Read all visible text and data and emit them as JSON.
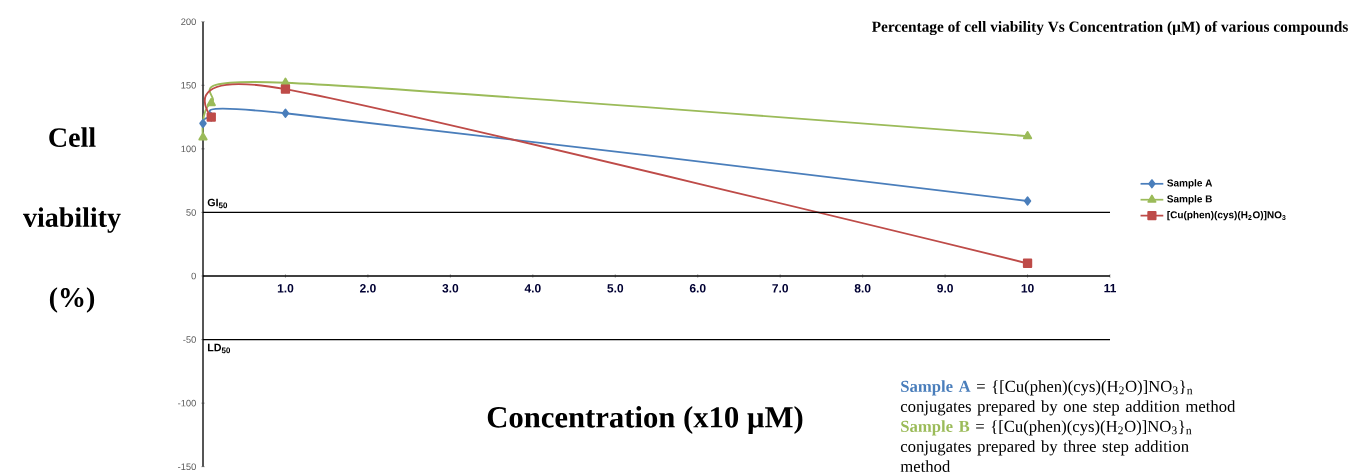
{
  "chart_data": {
    "type": "line",
    "title": "Percentage of cell viability Vs Concentration (µM) of various compounds",
    "xlabel": "Concentration (x10 µM)",
    "ylabel": "Cell viability (%)",
    "series": [
      {
        "name": "Sample A",
        "color": "#4a7ebb",
        "marker": "diamond",
        "x": [
          0,
          0.1,
          1,
          10
        ],
        "values": [
          120,
          125,
          128,
          59
        ]
      },
      {
        "name": "Sample B",
        "color": "#9bbb59",
        "marker": "triangle",
        "x": [
          0,
          0.1,
          1,
          10
        ],
        "values": [
          109,
          136,
          152,
          110
        ]
      },
      {
        "name": "[Cu(phen)(cys)(H$_{2}$O)]NO$_{3}$",
        "color": "#be4b48",
        "marker": "square",
        "x": [
          0.1,
          1,
          10
        ],
        "values": [
          125,
          147,
          10
        ]
      }
    ],
    "xlim": [
      0,
      11
    ],
    "ylim": [
      -150,
      200
    ],
    "xticks": [
      {
        "value": 1,
        "label": "1.0"
      },
      {
        "value": 2,
        "label": "2.0"
      },
      {
        "value": 3,
        "label": "3.0"
      },
      {
        "value": 4,
        "label": "4.0"
      },
      {
        "value": 5,
        "label": "5.0"
      },
      {
        "value": 6,
        "label": "6.0"
      },
      {
        "value": 7,
        "label": "7.0"
      },
      {
        "value": 8,
        "label": "8.0"
      },
      {
        "value": 9,
        "label": "9.0"
      },
      10,
      11
    ],
    "yticks": [
      -150,
      -100,
      -50,
      0,
      50,
      100,
      150,
      200
    ],
    "ref_lines": [
      {
        "axis": "y",
        "value": 50,
        "label": "GI$_{50}$"
      },
      {
        "axis": "y",
        "value": -50,
        "label": "LD$_{50}$"
      }
    ],
    "annotations": [
      "Sample A",
      "= {[Cu(phen)(cys)(H$_{2}$O)]NO$_{3}$}$_{n}$ conjugates prepared by one step addition method",
      "Sample B",
      "= {[Cu(phen)(cys)(H$_{2}$O)]NO$_{3}$}$_{n}$ conjugates prepared by three step addition method"
    ],
    "legend": "right",
    "line_style": "solid",
    "grid": false
  }
}
